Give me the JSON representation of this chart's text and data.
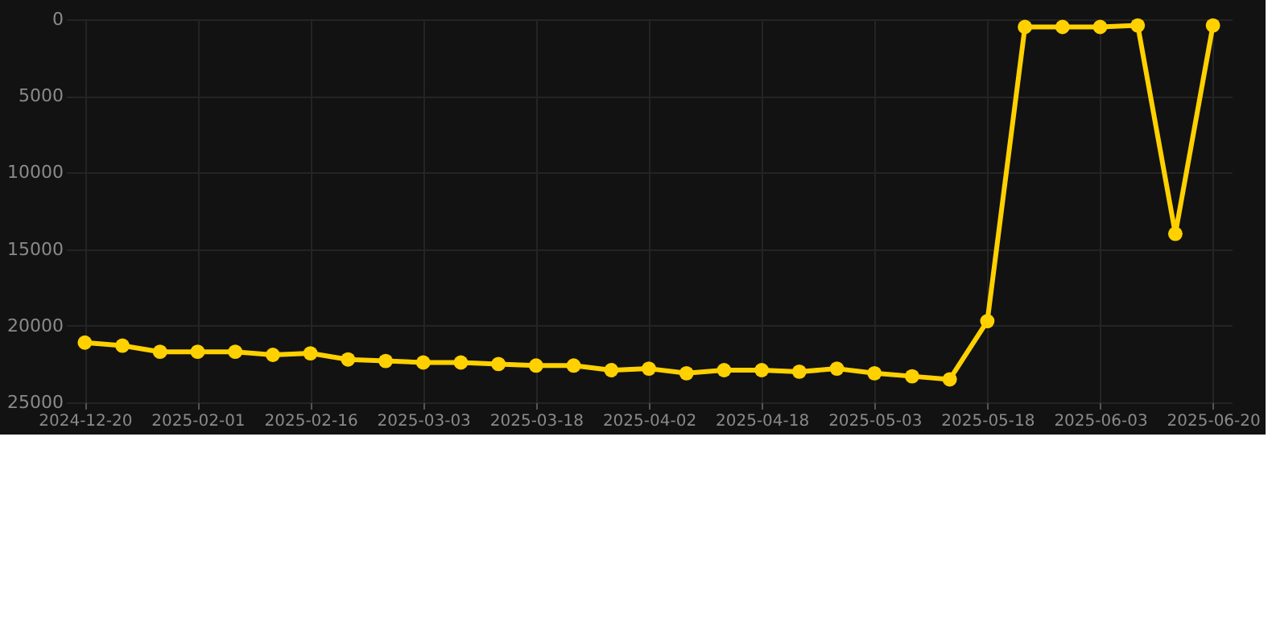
{
  "chart_data": {
    "type": "line",
    "categories": [
      "2024-12-20",
      null,
      null,
      "2025-02-01",
      null,
      null,
      "2025-02-16",
      null,
      null,
      "2025-03-03",
      null,
      null,
      "2025-03-18",
      null,
      null,
      "2025-04-02",
      null,
      null,
      "2025-04-18",
      null,
      null,
      "2025-05-03",
      null,
      null,
      "2025-05-18",
      null,
      null,
      "2025-06-03",
      null,
      null,
      "2025-06-20"
    ],
    "series": [
      {
        "color": "#ffd100",
        "values": [
          21100,
          21300,
          21700,
          21700,
          21700,
          21900,
          21800,
          22200,
          22300,
          22400,
          22400,
          22500,
          22600,
          22600,
          22900,
          22800,
          23100,
          22900,
          22900,
          23000,
          22800,
          23100,
          23300,
          23500,
          19700,
          500,
          500,
          500,
          400,
          14000,
          400
        ]
      }
    ],
    "ylim": [
      25000,
      0
    ],
    "yticks": [
      0,
      5000,
      10000,
      15000,
      20000,
      25000
    ],
    "grid": true,
    "marker": "circle",
    "line_style": "solid"
  }
}
